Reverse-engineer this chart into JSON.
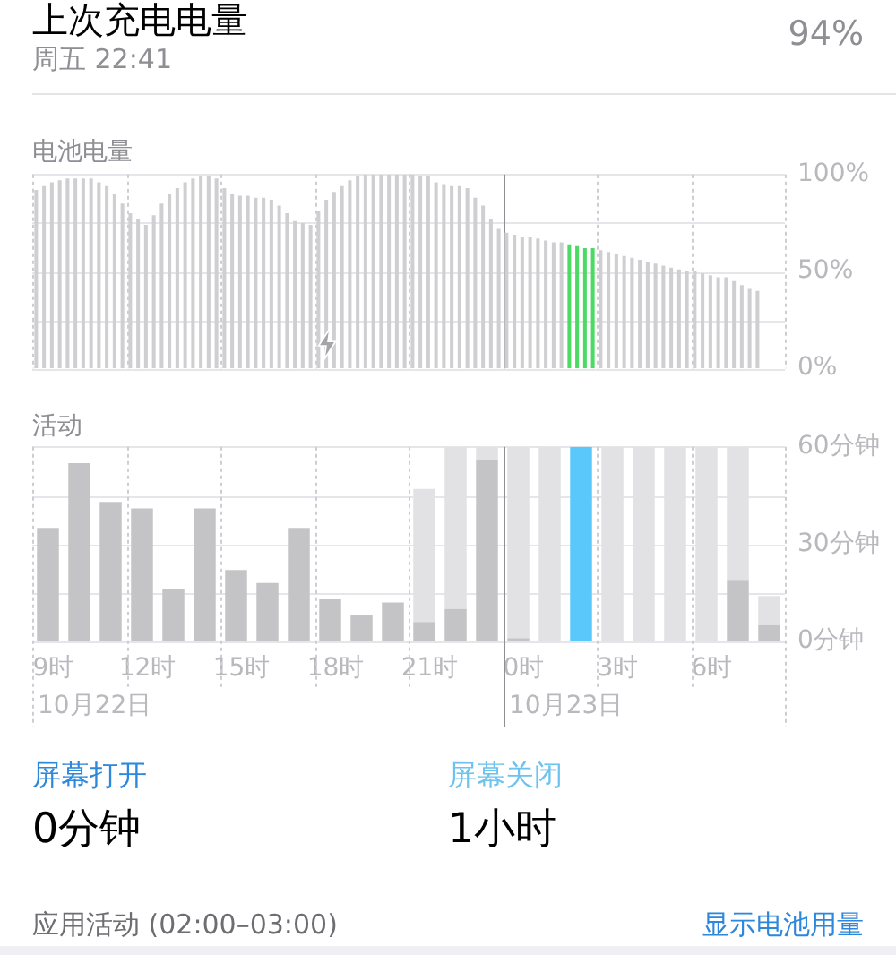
{
  "chart_data": [
    {
      "type": "other",
      "title": "上次充电电量",
      "annotations": [
        "周五 22:41",
        "94%"
      ]
    },
    {
      "type": "bar",
      "title": "电池电量",
      "categories": [
        null,
        null,
        null,
        null,
        null,
        null,
        null,
        null,
        null,
        null,
        null,
        null,
        null,
        null,
        null,
        null,
        null,
        null,
        null,
        null,
        null,
        null,
        null,
        null,
        null,
        null,
        null,
        null,
        null,
        null,
        null,
        null,
        null,
        null,
        null,
        null,
        null,
        null,
        null,
        null,
        null,
        null,
        null,
        null,
        null,
        null,
        null,
        null,
        null,
        null,
        null,
        null,
        null,
        null,
        null,
        null,
        null,
        null,
        null,
        null,
        null,
        null,
        null,
        null,
        null,
        null,
        null,
        null,
        null,
        null,
        null,
        null,
        null,
        null,
        null,
        null,
        null,
        null,
        null,
        null,
        null,
        null,
        null,
        null,
        null,
        null,
        null,
        null,
        null,
        null,
        null,
        null,
        null,
        null,
        null,
        null
      ],
      "values": [
        92,
        94,
        96,
        97,
        98,
        98,
        98,
        98,
        96,
        94,
        90,
        85,
        80,
        77,
        74,
        79,
        85,
        90,
        93,
        96,
        98,
        99,
        99,
        98,
        93,
        90,
        89,
        89,
        88,
        88,
        87,
        84,
        80,
        76,
        75,
        74,
        81,
        87,
        91,
        94,
        97,
        99,
        100,
        100,
        100,
        100,
        100,
        100,
        100,
        99,
        99,
        96,
        95,
        94,
        94,
        93,
        88,
        84,
        77,
        72,
        70,
        69,
        68,
        68,
        67,
        66,
        65,
        65,
        64,
        63,
        62,
        62,
        61,
        60,
        59,
        58,
        57,
        56,
        55,
        54,
        53,
        52,
        51,
        50,
        50,
        49,
        48,
        47,
        47,
        45,
        43,
        41,
        40,
        null,
        null,
        null
      ],
      "colors": [
        "#cfcfd1",
        "#cfcfd1",
        "#cfcfd1",
        "#cfcfd1",
        "#cfcfd1",
        "#cfcfd1",
        "#cfcfd1",
        "#cfcfd1",
        "#cfcfd1",
        "#cfcfd1",
        "#cfcfd1",
        "#cfcfd1",
        "#cfcfd1",
        "#cfcfd1",
        "#cfcfd1",
        "#cfcfd1",
        "#cfcfd1",
        "#cfcfd1",
        "#cfcfd1",
        "#cfcfd1",
        "#cfcfd1",
        "#cfcfd1",
        "#cfcfd1",
        "#cfcfd1",
        "#cfcfd1",
        "#cfcfd1",
        "#cfcfd1",
        "#cfcfd1",
        "#cfcfd1",
        "#cfcfd1",
        "#cfcfd1",
        "#cfcfd1",
        "#cfcfd1",
        "#cfcfd1",
        "#cfcfd1",
        "#cfcfd1",
        "#cfcfd1",
        "#cfcfd1",
        "#cfcfd1",
        "#cfcfd1",
        "#cfcfd1",
        "#cfcfd1",
        "#cfcfd1",
        "#cfcfd1",
        "#cfcfd1",
        "#cfcfd1",
        "#cfcfd1",
        "#cfcfd1",
        "#cfcfd1",
        "#cfcfd1",
        "#cfcfd1",
        "#cfcfd1",
        "#cfcfd1",
        "#cfcfd1",
        "#cfcfd1",
        "#cfcfd1",
        "#cfcfd1",
        "#cfcfd1",
        "#cfcfd1",
        "#cfcfd1",
        "#cfcfd1",
        "#cfcfd1",
        "#cfcfd1",
        "#cfcfd1",
        "#cfcfd1",
        "#cfcfd1",
        "#cfcfd1",
        "#cfcfd1",
        "#4cd964",
        "#4cd964",
        "#4cd964",
        "#4cd964",
        "#cfcfd1",
        "#cfcfd1",
        "#cfcfd1",
        "#cfcfd1",
        "#cfcfd1",
        "#cfcfd1",
        "#cfcfd1",
        "#cfcfd1",
        "#cfcfd1",
        "#cfcfd1",
        "#cfcfd1",
        "#cfcfd1",
        "#cfcfd1",
        "#cfcfd1",
        "#cfcfd1",
        "#cfcfd1",
        "#cfcfd1",
        "#cfcfd1",
        "#cfcfd1",
        "#cfcfd1",
        "#cfcfd1",
        "#cfcfd1",
        "#cfcfd1",
        "#cfcfd1"
      ],
      "ylim": [
        0,
        100
      ],
      "yticks": [
        {
          "value": 0,
          "label": "0%"
        },
        {
          "value": 25,
          "label": null
        },
        {
          "value": 50,
          "label": "50%"
        },
        {
          "value": 75,
          "label": null
        },
        {
          "value": 100,
          "label": "100%"
        }
      ],
      "tick_labels": "y",
      "grid": true
    },
    {
      "type": "bar",
      "title": "活动",
      "stacked": true,
      "categories": [
        "9时",
        null,
        null,
        "12时",
        null,
        null,
        "15时",
        null,
        null,
        "18时",
        null,
        null,
        "21时",
        null,
        null,
        "0时",
        null,
        null,
        "3时",
        null,
        null,
        "6时",
        null,
        null
      ],
      "series": [
        {
          "colors": [
            "#c4c4c6",
            "#c4c4c6",
            "#c4c4c6",
            "#c4c4c6",
            "#c4c4c6",
            "#c4c4c6",
            "#c4c4c6",
            "#c4c4c6",
            "#c4c4c6",
            "#c4c4c6",
            "#c4c4c6",
            "#c4c4c6",
            "#c4c4c6",
            "#c4c4c6",
            "#c4c4c6",
            "#c4c4c6",
            "#c4c4c6",
            "#c4c4c6",
            "#c4c4c6",
            "#c4c4c6",
            "#c4c4c6",
            "#c4c4c6",
            "#c4c4c6",
            "#c4c4c6"
          ],
          "values": [
            35,
            55,
            43,
            41,
            16,
            41,
            22,
            18,
            35,
            13,
            8,
            12,
            6,
            10,
            56,
            1,
            0,
            0,
            0,
            0,
            0,
            0,
            19,
            5
          ]
        },
        {
          "colors": [
            "#e2e2e4",
            "#e2e2e4",
            "#e2e2e4",
            "#e2e2e4",
            "#e2e2e4",
            "#e2e2e4",
            "#e2e2e4",
            "#e2e2e4",
            "#e2e2e4",
            "#e2e2e4",
            "#e2e2e4",
            "#e2e2e4",
            "#e2e2e4",
            "#e2e2e4",
            "#e2e2e4",
            "#e2e2e4",
            "#e2e2e4",
            "#5ac8fa",
            "#e2e2e4",
            "#e2e2e4",
            "#e2e2e4",
            "#e2e2e4",
            "#e2e2e4",
            "#e2e2e4"
          ],
          "values": [
            0,
            0,
            0,
            0,
            0,
            0,
            0,
            0,
            0,
            0,
            0,
            0,
            41,
            50,
            4,
            59,
            60,
            60,
            60,
            60,
            60,
            60,
            41,
            9
          ]
        }
      ],
      "ylim": [
        0,
        60
      ],
      "yticks": [
        {
          "value": 0,
          "label": "0分钟"
        },
        {
          "value": 15,
          "label": null
        },
        {
          "value": 30,
          "label": "30分钟"
        },
        {
          "value": 45,
          "label": null
        },
        {
          "value": 60,
          "label": "60分钟"
        }
      ],
      "grid": true,
      "annotations": [
        "10月22日",
        "10月23日"
      ]
    },
    {
      "type": "other",
      "annotations": [
        "屏幕打开",
        "0分钟",
        "屏幕关闭",
        "1小时",
        "应用活动 (02:00–03:00)",
        "显示电池用量"
      ]
    }
  ]
}
